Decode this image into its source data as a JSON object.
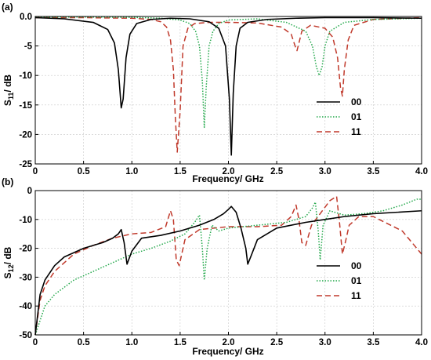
{
  "chart_data": [
    {
      "type": "line",
      "panel_label": "(a)",
      "xlabel": "Frequency/ GHz",
      "ylabel": "S11/ dB",
      "ylabel_main": "S",
      "ylabel_sub": "11",
      "ylabel_rest": "/ dB",
      "xlim": [
        0,
        4.0
      ],
      "ylim": [
        -25,
        0
      ],
      "xticks": [
        "0",
        "0.5",
        "1.0",
        "1.5",
        "2.0",
        "2.5",
        "3.0",
        "3.5",
        "4.0"
      ],
      "yticks": [
        "0.0",
        "-5",
        "-10",
        "-15",
        "-20",
        "-25"
      ],
      "grid": true,
      "legend_position": "lower-right",
      "series": [
        {
          "name": "00",
          "color": "#000000",
          "dash": "solid",
          "x": [
            0,
            0.3,
            0.6,
            0.75,
            0.82,
            0.86,
            0.89,
            0.91,
            0.94,
            0.98,
            1.05,
            1.2,
            1.4,
            1.6,
            1.8,
            1.9,
            1.97,
            2.01,
            2.03,
            2.05,
            2.08,
            2.12,
            2.2,
            2.4,
            2.7,
            3.0,
            3.5,
            4.0
          ],
          "y": [
            -0.2,
            -0.4,
            -1.0,
            -2.2,
            -4.5,
            -9.0,
            -15.5,
            -14.0,
            -7.0,
            -3.0,
            -1.2,
            -0.5,
            -0.3,
            -0.4,
            -0.9,
            -2.0,
            -5.0,
            -14.0,
            -23.5,
            -13.0,
            -5.0,
            -2.0,
            -1.0,
            -0.5,
            -0.3,
            -0.2,
            -0.2,
            -0.3
          ]
        },
        {
          "name": "01",
          "color": "#22a84a",
          "dash": "dotted",
          "x": [
            0,
            0.5,
            1.0,
            1.3,
            1.5,
            1.6,
            1.66,
            1.7,
            1.73,
            1.75,
            1.77,
            1.8,
            1.84,
            1.9,
            2.0,
            2.3,
            2.6,
            2.8,
            2.87,
            2.91,
            2.94,
            2.97,
            3.0,
            3.05,
            3.2,
            3.5,
            4.0
          ],
          "y": [
            -0.1,
            -0.1,
            -0.15,
            -0.3,
            -0.6,
            -1.2,
            -2.5,
            -5.0,
            -11.0,
            -18.8,
            -12.0,
            -5.0,
            -2.5,
            -1.2,
            -0.6,
            -0.4,
            -1.0,
            -2.5,
            -5.0,
            -8.5,
            -10.0,
            -8.5,
            -5.0,
            -2.5,
            -1.0,
            -0.5,
            -0.3
          ]
        },
        {
          "name": "11",
          "color": "#c0392b",
          "dash": "dashed",
          "x": [
            0,
            0.5,
            1.0,
            1.2,
            1.3,
            1.36,
            1.4,
            1.43,
            1.45,
            1.47,
            1.5,
            1.53,
            1.58,
            1.65,
            1.8,
            2.0,
            2.3,
            2.55,
            2.65,
            2.69,
            2.71,
            2.73,
            2.76,
            2.85,
            3.0,
            3.08,
            3.13,
            3.16,
            3.18,
            3.2,
            3.24,
            3.3,
            3.5,
            4.0
          ],
          "y": [
            -0.2,
            -0.2,
            -0.3,
            -0.5,
            -0.9,
            -1.8,
            -4.0,
            -9.0,
            -17.0,
            -23.0,
            -16.0,
            -5.0,
            -2.0,
            -1.2,
            -1.0,
            -1.0,
            -1.1,
            -1.8,
            -3.0,
            -5.0,
            -5.8,
            -4.5,
            -2.5,
            -1.5,
            -2.0,
            -3.5,
            -7.0,
            -12.0,
            -13.5,
            -9.0,
            -4.0,
            -1.5,
            -0.5,
            -0.2
          ]
        }
      ]
    },
    {
      "type": "line",
      "panel_label": "(b)",
      "xlabel": "Frequency/ GHz",
      "ylabel": "S12/ dB",
      "ylabel_main": "S",
      "ylabel_sub": "12",
      "ylabel_rest": "/ dB",
      "xlim": [
        0,
        4.0
      ],
      "ylim": [
        -50,
        0
      ],
      "xticks": [
        "0",
        "0.5",
        "1.0",
        "1.5",
        "2.0",
        "2.5",
        "3.0",
        "3.5",
        "4.0"
      ],
      "yticks": [
        "0",
        "-10",
        "-20",
        "-30",
        "-40",
        "-50"
      ],
      "grid": true,
      "legend_position": "lower-right",
      "series": [
        {
          "name": "00",
          "color": "#000000",
          "dash": "solid",
          "x": [
            0,
            0.05,
            0.1,
            0.2,
            0.3,
            0.5,
            0.7,
            0.8,
            0.86,
            0.89,
            0.92,
            0.95,
            1.0,
            1.1,
            1.3,
            1.5,
            1.7,
            1.85,
            1.95,
            2.0,
            2.03,
            2.08,
            2.13,
            2.18,
            2.2,
            2.23,
            2.3,
            2.5,
            2.8,
            3.0,
            3.2,
            3.5,
            4.0
          ],
          "y": [
            -50,
            -36,
            -31,
            -26,
            -23,
            -20,
            -18,
            -16.5,
            -15,
            -13.5,
            -18,
            -25.5,
            -21,
            -16.5,
            -15.5,
            -14,
            -12,
            -10,
            -8,
            -6.5,
            -5.5,
            -7.5,
            -13,
            -20,
            -25.5,
            -23,
            -17,
            -13,
            -11,
            -10,
            -9,
            -8,
            -7
          ]
        },
        {
          "name": "01",
          "color": "#22a84a",
          "dash": "dotted",
          "x": [
            0,
            0.05,
            0.1,
            0.2,
            0.4,
            0.6,
            0.8,
            1.0,
            1.2,
            1.4,
            1.55,
            1.65,
            1.7,
            1.73,
            1.75,
            1.78,
            1.83,
            1.9,
            2.0,
            2.3,
            2.6,
            2.8,
            2.87,
            2.9,
            2.93,
            2.95,
            2.98,
            3.05,
            3.2,
            3.4,
            3.6,
            3.8,
            3.95,
            4.0
          ],
          "y": [
            -50,
            -45,
            -40,
            -36,
            -31,
            -28,
            -25,
            -22,
            -20,
            -17.5,
            -15,
            -11,
            -8.5,
            -20,
            -31,
            -20,
            -12,
            -14,
            -13,
            -12,
            -11,
            -9,
            -6,
            -4,
            -14,
            -24,
            -12,
            -7,
            -8.5,
            -8,
            -7,
            -5,
            -3,
            -3
          ]
        },
        {
          "name": "11",
          "color": "#c0392b",
          "dash": "dashed",
          "x": [
            0,
            0.05,
            0.1,
            0.2,
            0.4,
            0.6,
            0.8,
            1.0,
            1.2,
            1.35,
            1.4,
            1.43,
            1.46,
            1.49,
            1.55,
            1.7,
            2.0,
            2.3,
            2.55,
            2.65,
            2.7,
            2.73,
            2.76,
            2.8,
            2.86,
            2.95,
            3.05,
            3.12,
            3.15,
            3.18,
            3.21,
            3.25,
            3.35,
            3.5,
            3.8,
            4.0
          ],
          "y": [
            -50,
            -38,
            -33,
            -28,
            -22,
            -19,
            -16.5,
            -15,
            -14.5,
            -12.5,
            -7,
            -10,
            -24,
            -26,
            -17,
            -13.5,
            -12.5,
            -12.5,
            -12,
            -9,
            -5,
            -10,
            -18,
            -19,
            -12,
            -8,
            -3.5,
            -2,
            -11,
            -22,
            -18,
            -12,
            -9,
            -9,
            -14,
            -22
          ]
        }
      ]
    }
  ]
}
